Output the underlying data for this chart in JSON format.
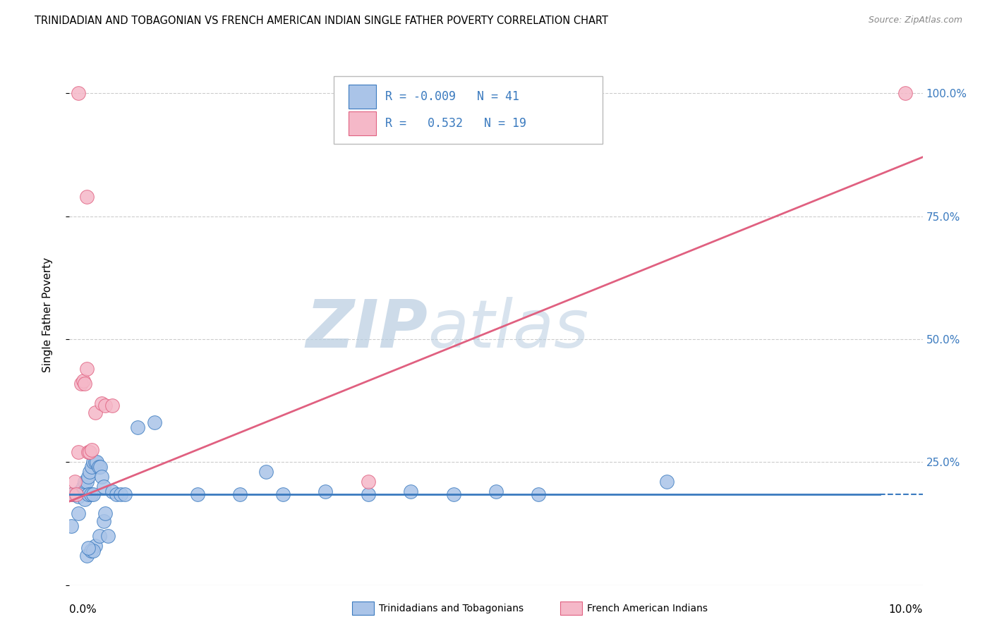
{
  "title": "TRINIDADIAN AND TOBAGONIAN VS FRENCH AMERICAN INDIAN SINGLE FATHER POVERTY CORRELATION CHART",
  "source": "Source: ZipAtlas.com",
  "ylabel": "Single Father Poverty",
  "xlim": [
    0.0,
    10.0
  ],
  "ylim": [
    0.0,
    1.1
  ],
  "blue_color": "#aac4e8",
  "pink_color": "#f5b8c8",
  "blue_line_color": "#3a7abf",
  "pink_line_color": "#e06080",
  "legend_text_color": "#3a7abf",
  "watermark_color": "#d0dff0",
  "blue_dots": [
    [
      0.02,
      0.185
    ],
    [
      0.04,
      0.185
    ],
    [
      0.06,
      0.185
    ],
    [
      0.08,
      0.185
    ],
    [
      0.1,
      0.18
    ],
    [
      0.12,
      0.19
    ],
    [
      0.14,
      0.19
    ],
    [
      0.16,
      0.2
    ],
    [
      0.18,
      0.21
    ],
    [
      0.2,
      0.21
    ],
    [
      0.22,
      0.22
    ],
    [
      0.24,
      0.23
    ],
    [
      0.26,
      0.24
    ],
    [
      0.28,
      0.25
    ],
    [
      0.3,
      0.25
    ],
    [
      0.32,
      0.25
    ],
    [
      0.34,
      0.24
    ],
    [
      0.36,
      0.24
    ],
    [
      0.38,
      0.22
    ],
    [
      0.02,
      0.12
    ],
    [
      0.1,
      0.145
    ],
    [
      0.18,
      0.175
    ],
    [
      0.22,
      0.185
    ],
    [
      0.25,
      0.185
    ],
    [
      0.28,
      0.185
    ],
    [
      0.4,
      0.2
    ],
    [
      0.5,
      0.19
    ],
    [
      0.55,
      0.185
    ],
    [
      0.6,
      0.185
    ],
    [
      0.65,
      0.185
    ],
    [
      0.8,
      0.32
    ],
    [
      1.0,
      0.33
    ],
    [
      1.5,
      0.185
    ],
    [
      2.0,
      0.185
    ],
    [
      2.5,
      0.185
    ],
    [
      3.0,
      0.19
    ],
    [
      3.5,
      0.185
    ],
    [
      4.5,
      0.185
    ],
    [
      5.5,
      0.185
    ],
    [
      0.3,
      0.08
    ],
    [
      0.35,
      0.1
    ],
    [
      0.4,
      0.13
    ],
    [
      0.45,
      0.1
    ],
    [
      0.2,
      0.06
    ],
    [
      0.25,
      0.07
    ],
    [
      0.28,
      0.07
    ],
    [
      0.22,
      0.075
    ],
    [
      0.42,
      0.145
    ],
    [
      2.3,
      0.23
    ],
    [
      7.0,
      0.21
    ],
    [
      4.0,
      0.19
    ],
    [
      5.0,
      0.19
    ]
  ],
  "pink_dots": [
    [
      0.02,
      0.185
    ],
    [
      0.06,
      0.21
    ],
    [
      0.08,
      0.185
    ],
    [
      0.1,
      0.27
    ],
    [
      0.14,
      0.41
    ],
    [
      0.16,
      0.415
    ],
    [
      0.18,
      0.41
    ],
    [
      0.2,
      0.44
    ],
    [
      0.22,
      0.27
    ],
    [
      0.24,
      0.27
    ],
    [
      0.26,
      0.275
    ],
    [
      0.3,
      0.35
    ],
    [
      0.38,
      0.37
    ],
    [
      0.42,
      0.365
    ],
    [
      0.5,
      0.365
    ],
    [
      0.2,
      0.79
    ],
    [
      0.1,
      1.0
    ],
    [
      3.5,
      0.21
    ],
    [
      9.8,
      1.0
    ]
  ],
  "blue_line_x": [
    0.0,
    9.5
  ],
  "blue_line_y": [
    0.185,
    0.185
  ],
  "pink_line_x": [
    0.0,
    10.0
  ],
  "pink_line_y": [
    0.17,
    0.87
  ]
}
